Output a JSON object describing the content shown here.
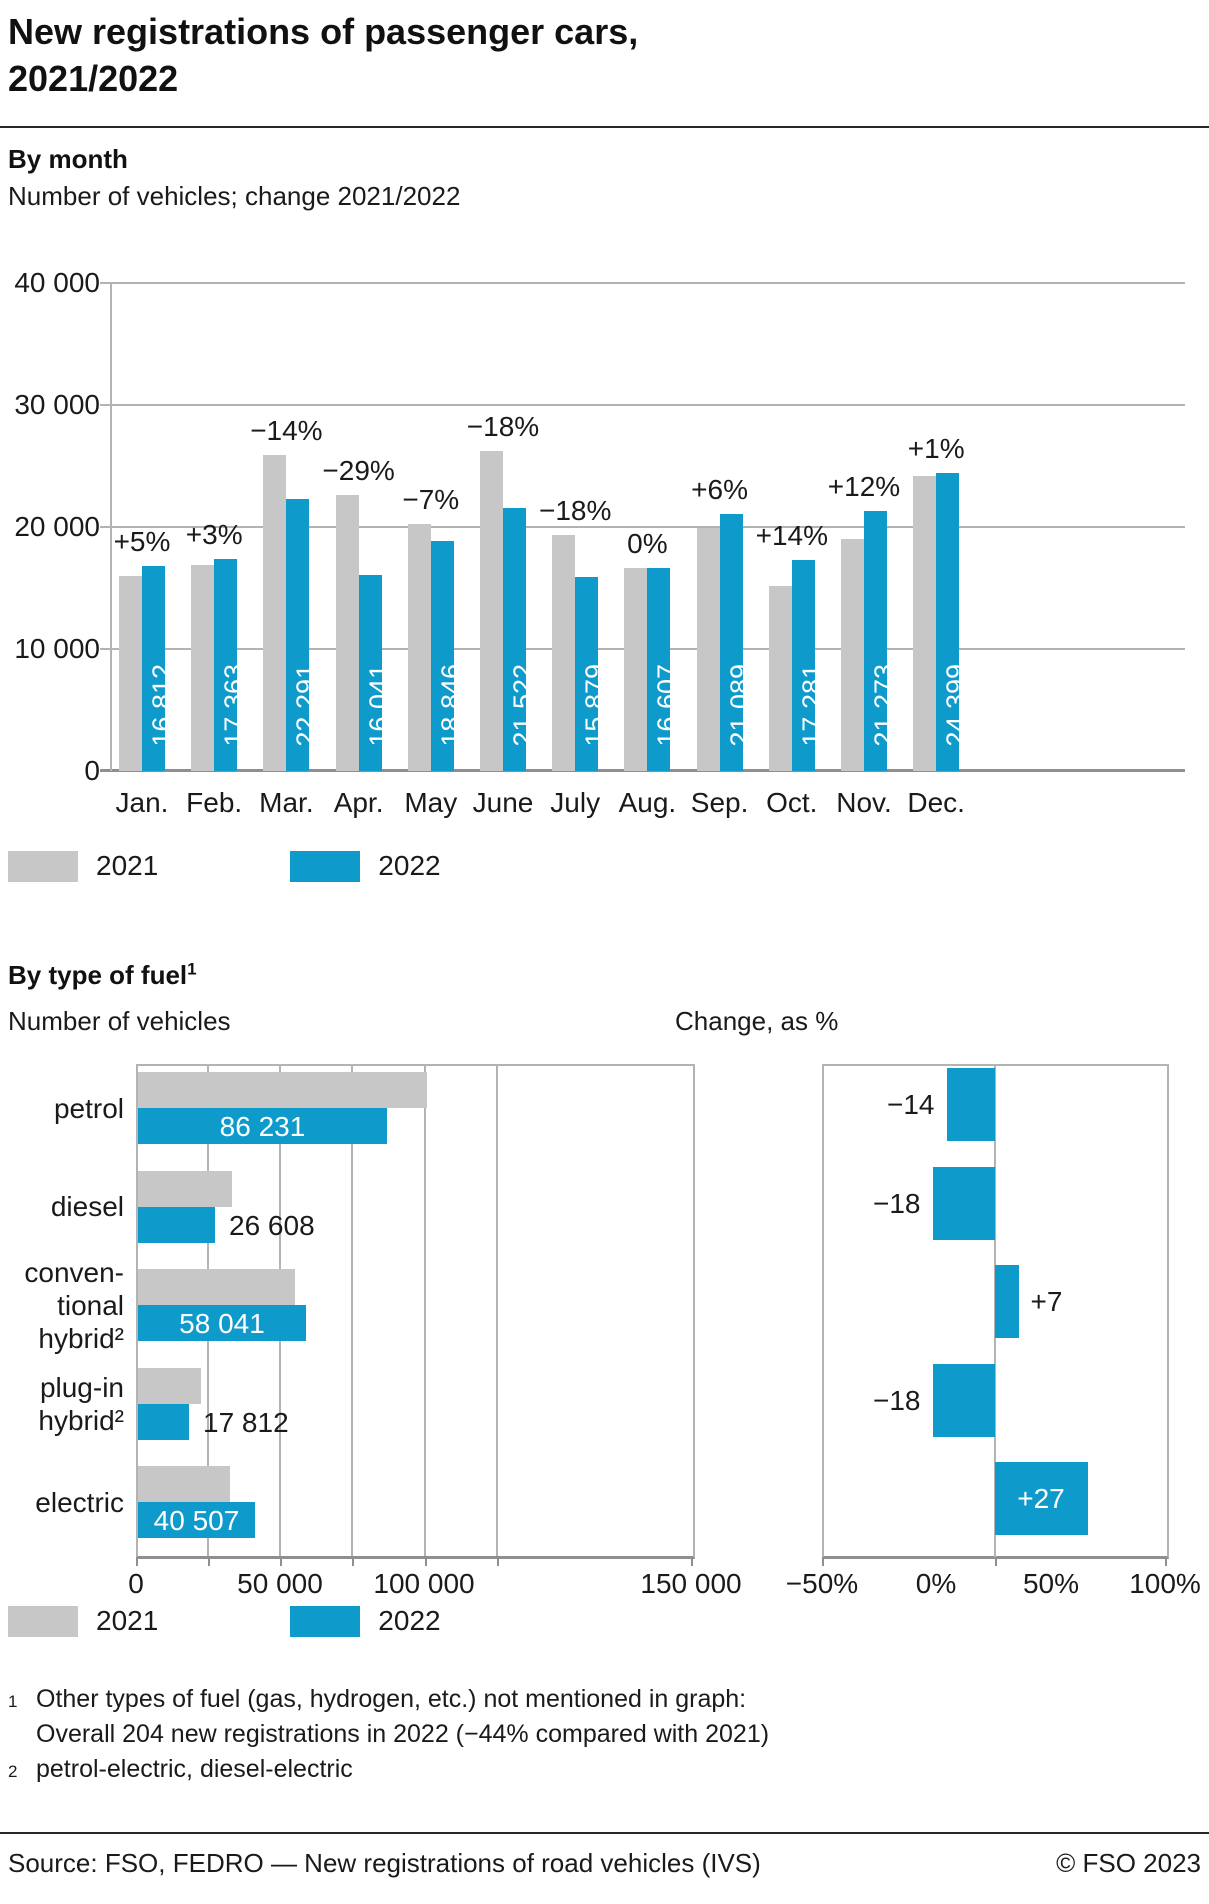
{
  "title_line1": "New registrations of passenger cars,",
  "title_line2": "2021/2022",
  "colors": {
    "bar_2021": "#c7c7c7",
    "bar_2022": "#0e9bcb",
    "grid": "#b3b3b3",
    "axis": "#8f8f8f",
    "text": "#1a1a1a"
  },
  "legend": {
    "label_2021": "2021",
    "label_2022": "2022"
  },
  "monthly_heading": "By month",
  "monthly_subtitle": "Number of vehicles; change 2021/2022",
  "fuel_heading": "By type of fuel",
  "fuel_heading_marker": "1",
  "fuel_subtitle_left": "Number of vehicles",
  "fuel_subtitle_right": "Change, as %",
  "chart_data": [
    {
      "id": "by_month",
      "type": "bar",
      "title": "By month",
      "subtitle": "Number of vehicles; change 2021/2022",
      "categories": [
        "Jan.",
        "Feb.",
        "Mar.",
        "Apr.",
        "May",
        "June",
        "July",
        "Aug.",
        "Sep.",
        "Oct.",
        "Nov.",
        "Dec."
      ],
      "series": [
        {
          "name": "2021",
          "estimated_from_pct_labels": true,
          "values": [
            16012,
            16857,
            25920,
            22593,
            20265,
            26246,
            19365,
            16607,
            19895,
            15159,
            18994,
            24157
          ]
        },
        {
          "name": "2022",
          "values": [
            16812,
            17363,
            22291,
            16041,
            18846,
            21522,
            15879,
            16607,
            21089,
            17281,
            21273,
            24399
          ]
        }
      ],
      "value_labels_2022": [
        "16 812",
        "17 363",
        "22 291",
        "16 041",
        "18 846",
        "21 522",
        "15 879",
        "16 607",
        "21 089",
        "17 281",
        "21 273",
        "24 399"
      ],
      "pct_change_labels": [
        "+5%",
        "+3%",
        "−14%",
        "−29%",
        "−7%",
        "−18%",
        "−18%",
        "0%",
        "+6%",
        "+14%",
        "+12%",
        "+1%"
      ],
      "ylim": [
        0,
        40000
      ],
      "y_ticks": [
        "40 000",
        "30 000",
        "20 000",
        "10 000",
        "0"
      ],
      "grid": true,
      "legend_position": "bottom-left"
    },
    {
      "id": "by_fuel_count",
      "type": "bar",
      "subtitle": "Number of vehicles",
      "categories": [
        "petrol",
        "diesel",
        "conventional hybrid",
        "plug-in hybrid",
        "electric"
      ],
      "category_display_lines": [
        [
          "petrol"
        ],
        [
          "diesel"
        ],
        [
          "conven-",
          "tional",
          "hybrid²"
        ],
        [
          "plug-in",
          "hybrid²"
        ],
        [
          "electric"
        ]
      ],
      "series": [
        {
          "name": "2021",
          "estimated_from_pct_labels": true,
          "values": [
            100269,
            32449,
            54243,
            21722,
            31895
          ]
        },
        {
          "name": "2022",
          "values": [
            86231,
            26608,
            58041,
            17812,
            40507
          ]
        }
      ],
      "value_labels_2022": [
        "86 231",
        "26 608",
        "58 041",
        "17 812",
        "40 507"
      ],
      "value_label_inside_bar": [
        true,
        false,
        true,
        false,
        true
      ],
      "xlim": [
        0,
        193000
      ],
      "x_ticks": [
        "0",
        "50 000",
        "100 000",
        "150 000"
      ],
      "gridline_interval": 25000
    },
    {
      "id": "by_fuel_change",
      "type": "bar",
      "subtitle": "Change, as %",
      "categories": [
        "petrol",
        "diesel",
        "conventional hybrid",
        "plug-in hybrid",
        "electric"
      ],
      "values": [
        -14,
        -18,
        7,
        -18,
        27
      ],
      "value_labels": [
        "−14",
        "−18",
        "+7",
        "−18",
        "+27"
      ],
      "value_label_inside_bar": [
        false,
        false,
        false,
        false,
        true
      ],
      "x_ticks": [
        "−50%",
        "0%",
        "50%",
        "100%"
      ],
      "plotted_range": [
        -50,
        50
      ]
    }
  ],
  "footnotes": {
    "marker1": "1",
    "line1a": "Other types of fuel (gas, hydrogen, etc.) not mentioned in graph:",
    "line1b": "Overall 204 new registrations in 2022 (−44% compared with 2021)",
    "marker2": "2",
    "line2": "petrol-electric, diesel-electric"
  },
  "footer": {
    "source": "Source: FSO, FEDRO — New registrations of road vehicles (IVS)",
    "copyright": "© FSO 2023"
  }
}
